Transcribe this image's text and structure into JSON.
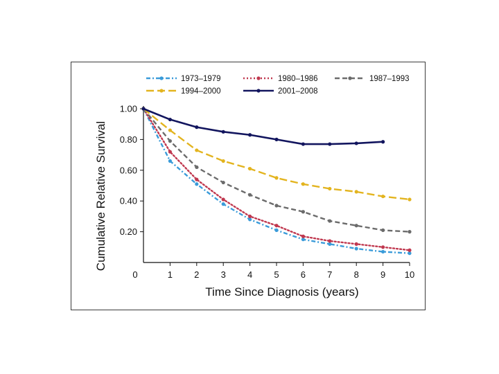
{
  "chart_data": {
    "type": "line",
    "title": "",
    "xlabel": "Time Since Diagnosis (years)",
    "ylabel": "Cumulative Relative Survival",
    "xlim": [
      0,
      10
    ],
    "ylim": [
      0,
      1.0
    ],
    "x_ticks": [
      "0",
      "1",
      "2",
      "3",
      "4",
      "5",
      "6",
      "7",
      "8",
      "9",
      "10"
    ],
    "y_ticks": [
      "0.20",
      "0.40",
      "0.60",
      "0.80",
      "1.00"
    ],
    "grid": false,
    "legend_position": "top",
    "series": [
      {
        "name": "1973–1979",
        "color": "#3a9bd9",
        "dash": "dashdot",
        "x": [
          0,
          1,
          2,
          3,
          4,
          5,
          6,
          7,
          8,
          9,
          10
        ],
        "values": [
          1.0,
          0.66,
          0.51,
          0.38,
          0.28,
          0.21,
          0.15,
          0.12,
          0.09,
          0.07,
          0.06
        ]
      },
      {
        "name": "1980–1986",
        "color": "#c0384f",
        "dash": "dotted",
        "x": [
          0,
          1,
          2,
          3,
          4,
          5,
          6,
          7,
          8,
          9,
          10
        ],
        "values": [
          1.0,
          0.72,
          0.54,
          0.41,
          0.3,
          0.24,
          0.17,
          0.14,
          0.12,
          0.1,
          0.08
        ]
      },
      {
        "name": "1987–1993",
        "color": "#6b6b6b",
        "dash": "dashed",
        "x": [
          0,
          1,
          2,
          3,
          4,
          5,
          6,
          7,
          8,
          9,
          10
        ],
        "values": [
          1.0,
          0.79,
          0.62,
          0.52,
          0.44,
          0.37,
          0.33,
          0.27,
          0.24,
          0.21,
          0.2
        ]
      },
      {
        "name": "1994–2000",
        "color": "#e3b41f",
        "dash": "longdash",
        "x": [
          0,
          1,
          2,
          3,
          4,
          5,
          6,
          7,
          8,
          9,
          10
        ],
        "values": [
          1.0,
          0.86,
          0.73,
          0.66,
          0.61,
          0.55,
          0.51,
          0.48,
          0.46,
          0.43,
          0.41
        ]
      },
      {
        "name": "2001–2008",
        "color": "#12155e",
        "dash": "solid",
        "x": [
          0,
          1,
          2,
          3,
          4,
          5,
          6,
          7,
          8,
          9
        ],
        "values": [
          1.0,
          0.93,
          0.88,
          0.85,
          0.83,
          0.8,
          0.77,
          0.77,
          0.775,
          0.785
        ]
      }
    ]
  }
}
